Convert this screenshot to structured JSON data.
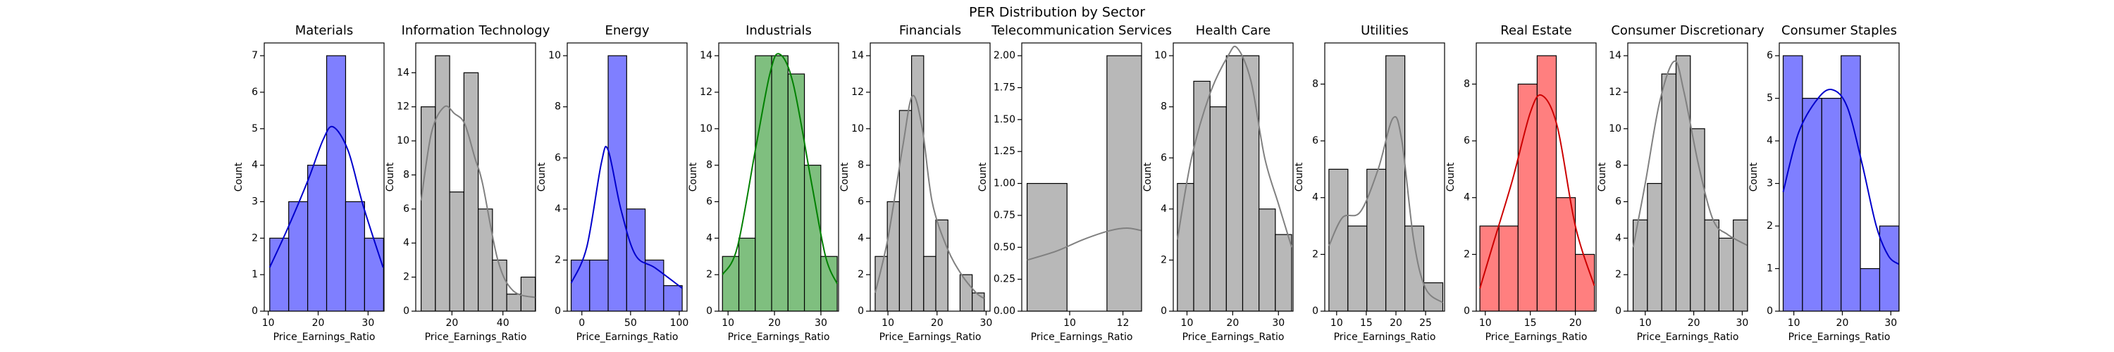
{
  "title": "PER Distribution by Sector",
  "chart_data": [
    {
      "type": "histogram",
      "title": "Materials",
      "xlabel": "Price_Earnings_Ratio",
      "ylabel": "Count",
      "color": "#7f7fff",
      "bins": [
        10.3,
        14.1,
        17.9,
        21.7,
        25.5,
        29.3,
        33.1
      ],
      "values": [
        2,
        3,
        4,
        7,
        3,
        2
      ],
      "xlim": [
        9.2,
        33.2
      ],
      "xticks": [
        10,
        20,
        30
      ],
      "ylim": [
        0,
        7.35
      ],
      "yticks": [
        0,
        1,
        2,
        3,
        4,
        5,
        6,
        7
      ],
      "kde": {
        "color": "#0000cc",
        "x": [
          10.3,
          14,
          18,
          21,
          23,
          26,
          29,
          33
        ],
        "values": [
          1.2,
          2.3,
          3.6,
          4.7,
          5.05,
          4.4,
          2.9,
          1.2
        ]
      }
    },
    {
      "type": "histogram",
      "title": "Information Technology",
      "xlabel": "Price_Earnings_Ratio",
      "ylabel": "Count",
      "color": "#b8b8b8",
      "bins": [
        7.9,
        13.5,
        19.1,
        24.7,
        30.3,
        35.9,
        41.5,
        47.1,
        52.7
      ],
      "values": [
        12,
        15,
        7,
        14,
        6,
        3,
        1,
        2
      ],
      "xlim": [
        5.8,
        52.8
      ],
      "xticks": [
        20,
        40
      ],
      "ylim": [
        0,
        15.75
      ],
      "yticks": [
        0,
        2,
        4,
        6,
        8,
        10,
        12,
        14
      ],
      "kde": {
        "color": "#808080",
        "x": [
          7.9,
          12,
          17,
          21,
          25,
          29,
          32,
          38,
          44,
          52.7
        ],
        "values": [
          6.5,
          10.5,
          12,
          11.6,
          11,
          9,
          7.5,
          3,
          1.2,
          0.8
        ]
      }
    },
    {
      "type": "histogram",
      "title": "Energy",
      "xlabel": "Price_Earnings_Ratio",
      "ylabel": "Count",
      "color": "#7f7fff",
      "bins": [
        -11,
        8,
        27,
        46,
        65,
        84,
        103
      ],
      "values": [
        2,
        2,
        10,
        4,
        2,
        1
      ],
      "xlim": [
        -15,
        108
      ],
      "xticks": [
        0,
        50,
        100
      ],
      "ylim": [
        0,
        10.5
      ],
      "yticks": [
        0,
        2,
        4,
        6,
        8,
        10
      ],
      "kde": {
        "color": "#0000cc",
        "x": [
          -11,
          5,
          20,
          27,
          40,
          55,
          75,
          103
        ],
        "values": [
          1.1,
          2.5,
          5.8,
          6.3,
          4,
          2.2,
          1.7,
          0.9
        ]
      }
    },
    {
      "type": "histogram",
      "title": "Industrials",
      "xlabel": "Price_Earnings_Ratio",
      "ylabel": "Count",
      "color": "#7fbf7f",
      "bins": [
        8.8,
        12.33,
        15.86,
        19.39,
        22.92,
        26.45,
        29.98,
        33.51
      ],
      "values": [
        3,
        4,
        14,
        14,
        13,
        8,
        3
      ],
      "xlim": [
        8,
        33.8
      ],
      "xticks": [
        10,
        20,
        30
      ],
      "ylim": [
        0,
        14.7
      ],
      "yticks": [
        0,
        2,
        4,
        6,
        8,
        10,
        12,
        14
      ],
      "kde": {
        "color": "#008000",
        "x": [
          8.8,
          12,
          16,
          19,
          21,
          24,
          28,
          31,
          33.5
        ],
        "values": [
          2,
          3.5,
          9,
          13,
          14.1,
          12.5,
          7,
          3,
          1.5
        ]
      }
    },
    {
      "type": "histogram",
      "title": "Financials",
      "xlabel": "Price_Earnings_Ratio",
      "ylabel": "Count",
      "color": "#b8b8b8",
      "bins": [
        7.4,
        9.87,
        12.34,
        14.81,
        17.28,
        19.75,
        22.22,
        24.69,
        27.16,
        29.63
      ],
      "values": [
        3,
        6,
        11,
        14,
        3,
        5,
        0,
        2,
        1
      ],
      "xlim": [
        6.4,
        30.8
      ],
      "xticks": [
        10,
        20,
        30
      ],
      "ylim": [
        0,
        14.7
      ],
      "yticks": [
        0,
        2,
        4,
        6,
        8,
        10,
        12,
        14
      ],
      "kde": {
        "color": "#808080",
        "x": [
          7.4,
          10,
          13,
          15,
          17,
          19,
          22,
          25,
          28,
          29.6
        ],
        "values": [
          1,
          4,
          9,
          11.8,
          10,
          6,
          3.5,
          2,
          1,
          0.7
        ]
      }
    },
    {
      "type": "histogram",
      "title": "Telecommunication Services",
      "xlabel": "Price_Earnings_Ratio",
      "ylabel": "Count",
      "color": "#b8b8b8",
      "bins": [
        8.4,
        9.9,
        11.4,
        12.9
      ],
      "values": [
        1,
        0,
        2
      ],
      "xlim": [
        8.2,
        12.7
      ],
      "xticks": [
        10,
        12
      ],
      "ylim": [
        0,
        2.1
      ],
      "yticks": [
        {
          "value": 0,
          "label": "0.00"
        },
        {
          "value": 0.25,
          "label": "0.25"
        },
        {
          "value": 0.5,
          "label": "0.50"
        },
        {
          "value": 0.75,
          "label": "0.75"
        },
        {
          "value": 1,
          "label": "1.00"
        },
        {
          "value": 1.25,
          "label": "1.25"
        },
        {
          "value": 1.5,
          "label": "1.50"
        },
        {
          "value": 1.75,
          "label": "1.75"
        },
        {
          "value": 2,
          "label": "2.00"
        }
      ],
      "kde": {
        "color": "#808080",
        "x": [
          8.4,
          9.5,
          10.5,
          11.5,
          12.2,
          12.9
        ],
        "values": [
          0.4,
          0.47,
          0.56,
          0.63,
          0.65,
          0.62
        ]
      }
    },
    {
      "type": "histogram",
      "title": "Health Care",
      "xlabel": "Price_Earnings_Ratio",
      "ylabel": "Count",
      "color": "#b8b8b8",
      "bins": [
        7.9,
        11.47,
        15.04,
        18.61,
        22.18,
        25.75,
        29.32,
        32.89
      ],
      "values": [
        5,
        9,
        8,
        10,
        10,
        4,
        3
      ],
      "xlim": [
        7,
        33.2
      ],
      "xticks": [
        10,
        20,
        30
      ],
      "ylim": [
        0,
        10.5
      ],
      "yticks": [
        0,
        2,
        4,
        6,
        8,
        10
      ],
      "kde": {
        "color": "#808080",
        "x": [
          7.9,
          11,
          15,
          19,
          21,
          24,
          27,
          30,
          32.9
        ],
        "values": [
          2.8,
          6,
          8.5,
          10,
          10.3,
          9,
          6,
          4.2,
          2.5
        ]
      }
    },
    {
      "type": "histogram",
      "title": "Utilities",
      "xlabel": "Price_Earnings_Ratio",
      "ylabel": "Count",
      "color": "#b8b8b8",
      "bins": [
        8.7,
        11.9,
        15.1,
        18.3,
        21.5,
        24.7,
        27.9
      ],
      "values": [
        5,
        3,
        5,
        9,
        3,
        1
      ],
      "xlim": [
        8,
        28.2
      ],
      "xticks": [
        10,
        15,
        20,
        25
      ],
      "ylim": [
        0,
        9.45
      ],
      "yticks": [
        0,
        2,
        4,
        6,
        8
      ],
      "kde": {
        "color": "#808080",
        "x": [
          8.7,
          11,
          14,
          17,
          19.5,
          21,
          23,
          25,
          27.9
        ],
        "values": [
          2.3,
          3.3,
          3.5,
          5,
          6.8,
          6,
          2.5,
          0.8,
          0.3
        ]
      }
    },
    {
      "type": "histogram",
      "title": "Real Estate",
      "xlabel": "Price_Earnings_Ratio",
      "ylabel": "Count",
      "color": "#ff7f7f",
      "bins": [
        9.4,
        11.52,
        13.64,
        15.76,
        17.88,
        20,
        22.12
      ],
      "values": [
        3,
        3,
        8,
        9,
        4,
        2
      ],
      "xlim": [
        9,
        22.3
      ],
      "xticks": [
        10,
        15,
        20
      ],
      "ylim": [
        0,
        9.45
      ],
      "yticks": [
        0,
        2,
        4,
        6,
        8
      ],
      "kde": {
        "color": "#cc0000",
        "x": [
          9.4,
          11,
          13,
          15,
          16.3,
          18,
          20,
          22.1
        ],
        "values": [
          0.8,
          2.5,
          4.6,
          7,
          7.6,
          6.5,
          3,
          0.9
        ]
      }
    },
    {
      "type": "histogram",
      "title": "Consumer Discretionary",
      "xlabel": "Price_Earnings_Ratio",
      "ylabel": "Count",
      "color": "#b8b8b8",
      "bins": [
        7.5,
        10.45,
        13.4,
        16.35,
        19.3,
        22.25,
        25.2,
        28.15,
        31.1
      ],
      "values": [
        5,
        7,
        13,
        14,
        10,
        5,
        4,
        5
      ],
      "xlim": [
        6.4,
        31.1
      ],
      "xticks": [
        10,
        20,
        30
      ],
      "ylim": [
        0,
        14.7
      ],
      "yticks": [
        0,
        2,
        4,
        6,
        8,
        10,
        12,
        14
      ],
      "kde": {
        "color": "#808080",
        "x": [
          7.5,
          10,
          13,
          16,
          18,
          21,
          24,
          27,
          31.1
        ],
        "values": [
          3.5,
          7,
          11.5,
          13.7,
          12,
          8,
          5,
          4.2,
          3.6
        ]
      }
    },
    {
      "type": "histogram",
      "title": "Consumer Staples",
      "xlabel": "Price_Earnings_Ratio",
      "ylabel": "Count",
      "color": "#7f7fff",
      "bins": [
        7.8,
        11.78,
        15.76,
        19.74,
        23.72,
        27.7,
        31.68
      ],
      "values": [
        6,
        5,
        5,
        6,
        1,
        2
      ],
      "xlim": [
        7,
        31.7
      ],
      "xticks": [
        10,
        20,
        30
      ],
      "ylim": [
        0,
        6.3
      ],
      "yticks": [
        0,
        1,
        2,
        3,
        4,
        5,
        6
      ],
      "kde": {
        "color": "#0000cc",
        "x": [
          7.8,
          11,
          15,
          18,
          21,
          24,
          27,
          29.5,
          31.7
        ],
        "values": [
          2.8,
          4.2,
          5,
          5.2,
          4.8,
          3.5,
          2,
          1.3,
          1.1
        ]
      }
    }
  ]
}
